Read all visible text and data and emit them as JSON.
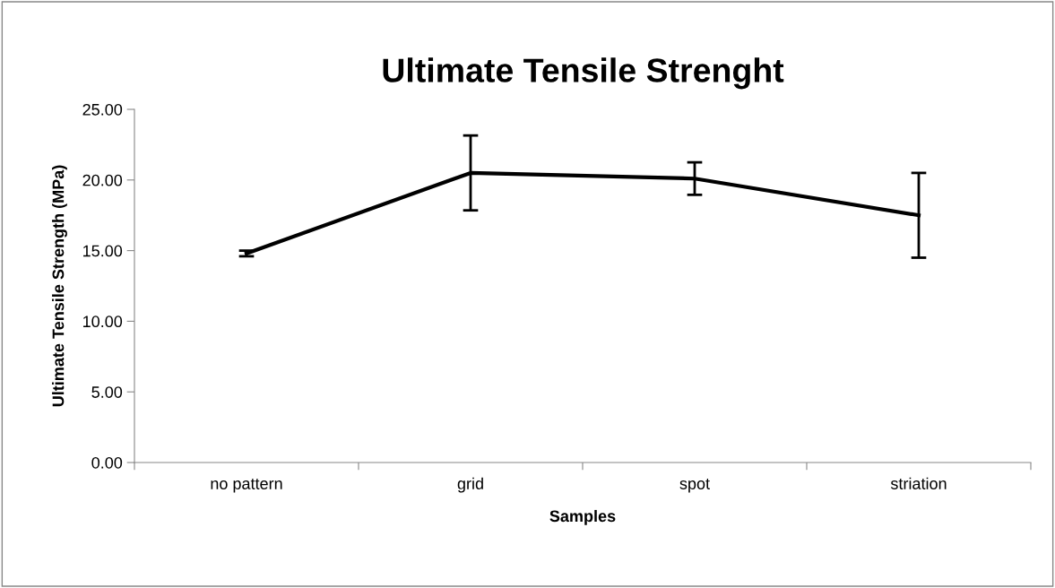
{
  "chart_data": {
    "type": "line",
    "title": "Ultimate Tensile Strenght",
    "xlabel": "Samples",
    "ylabel": "Ultimate Tensile Strength (MPa)",
    "categories": [
      "no pattern",
      "grid",
      "spot",
      "striation"
    ],
    "series": [
      {
        "color": "#000000",
        "values": [
          14.8,
          20.5,
          20.1,
          17.5
        ],
        "errors": [
          0.2,
          2.65,
          1.15,
          3.0
        ]
      }
    ],
    "ylim": [
      0,
      25
    ],
    "yticks": [
      {
        "value": 0,
        "label": "0.00"
      },
      {
        "value": 5,
        "label": "5.00"
      },
      {
        "value": 10,
        "label": "10.00"
      },
      {
        "value": 15,
        "label": "15.00"
      },
      {
        "value": 20,
        "label": "20.00"
      },
      {
        "value": 25,
        "label": "25.00"
      }
    ],
    "grid": false,
    "marker": "none",
    "line_style": "solid",
    "legend": false
  }
}
